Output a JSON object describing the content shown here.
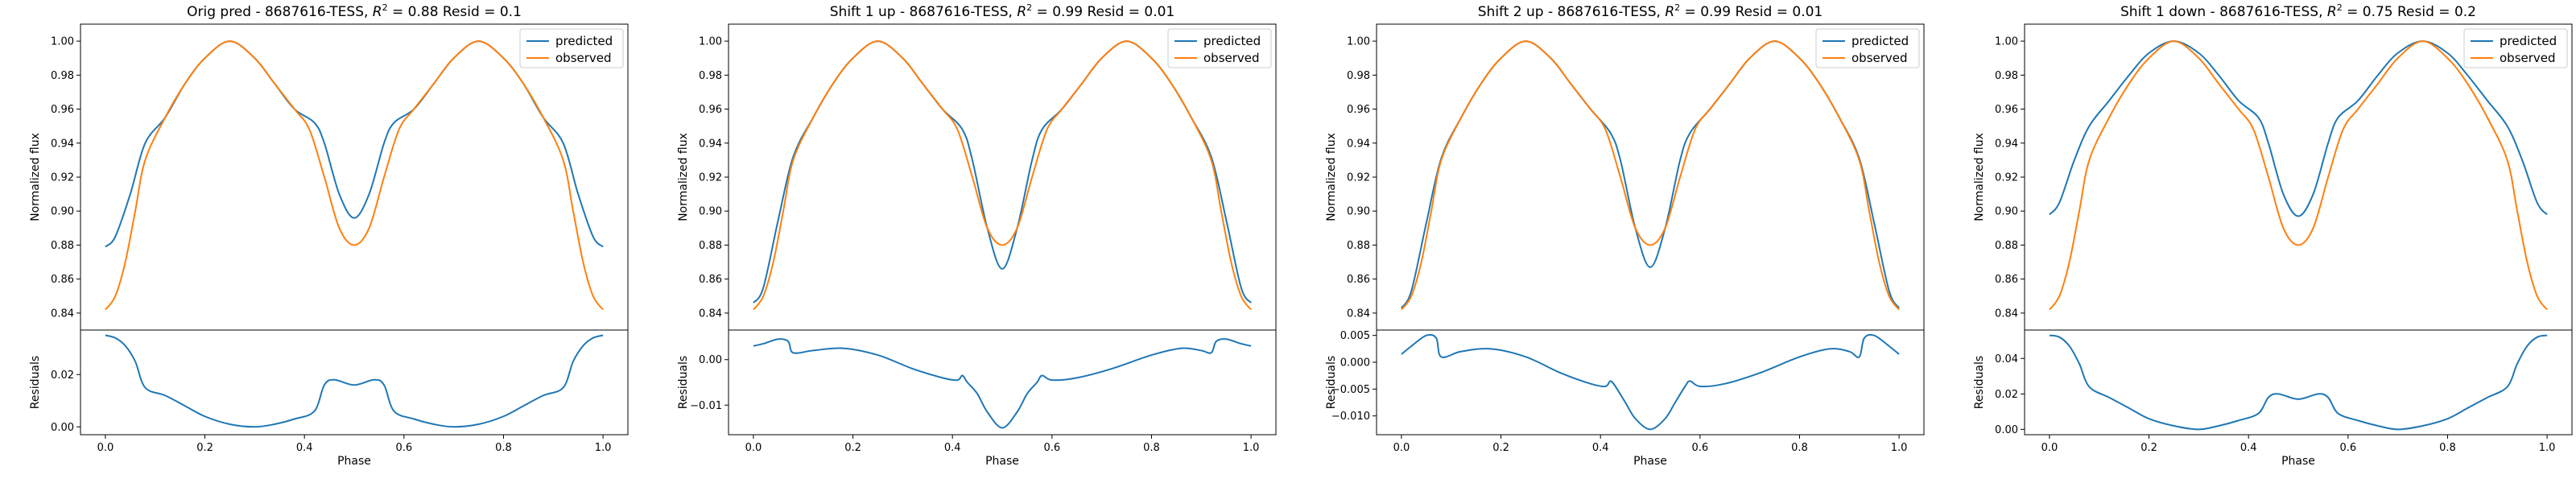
{
  "chart_data": [
    {
      "type": "line",
      "title": "Orig pred - 8687616-TESS, R² = 0.88 Resid = 0.1",
      "title_parts": {
        "prefix": "Orig pred - 8687616-TESS, ",
        "r2_symbol": "R",
        "r2_exp": "2",
        "suffix": " = 0.88 Resid = 0.1"
      },
      "xlabel": "Phase",
      "ylabel_top": "Normalized flux",
      "ylabel_bottom": "Residuals",
      "xlim": [
        -0.05,
        1.05
      ],
      "ylim_top": [
        0.83,
        1.01
      ],
      "ylim_bottom": [
        -0.003,
        0.037
      ],
      "xticks": [
        "0.0",
        "0.2",
        "0.4",
        "0.6",
        "0.8",
        "1.0"
      ],
      "yticks_top": [
        "0.84",
        "0.86",
        "0.88",
        "0.90",
        "0.92",
        "0.94",
        "0.96",
        "0.98",
        "1.00"
      ],
      "yticks_bottom": [
        "0.00",
        "0.02"
      ],
      "legend": [
        "predicted",
        "observed"
      ],
      "series": [
        {
          "name": "predicted",
          "x": [
            0.0,
            0.02,
            0.05,
            0.08,
            0.12,
            0.16,
            0.2,
            0.25,
            0.3,
            0.34,
            0.38,
            0.42,
            0.44,
            0.47,
            0.5,
            0.53,
            0.56,
            0.58,
            0.62,
            0.66,
            0.7,
            0.75,
            0.8,
            0.84,
            0.88,
            0.92,
            0.95,
            0.98,
            1.0
          ],
          "y": [
            0.879,
            0.885,
            0.91,
            0.94,
            0.955,
            0.975,
            0.99,
            1.0,
            0.99,
            0.975,
            0.96,
            0.952,
            0.94,
            0.91,
            0.896,
            0.91,
            0.94,
            0.952,
            0.96,
            0.975,
            0.99,
            1.0,
            0.99,
            0.975,
            0.955,
            0.94,
            0.91,
            0.885,
            0.879
          ]
        },
        {
          "name": "observed",
          "x": [
            0.0,
            0.02,
            0.04,
            0.06,
            0.08,
            0.12,
            0.16,
            0.2,
            0.25,
            0.3,
            0.34,
            0.38,
            0.41,
            0.44,
            0.47,
            0.5,
            0.53,
            0.56,
            0.59,
            0.62,
            0.66,
            0.7,
            0.75,
            0.8,
            0.84,
            0.88,
            0.92,
            0.94,
            0.96,
            0.98,
            1.0
          ],
          "y": [
            0.842,
            0.85,
            0.87,
            0.9,
            0.93,
            0.955,
            0.975,
            0.99,
            1.0,
            0.99,
            0.975,
            0.96,
            0.948,
            0.92,
            0.89,
            0.88,
            0.89,
            0.92,
            0.948,
            0.96,
            0.975,
            0.99,
            1.0,
            0.99,
            0.975,
            0.955,
            0.93,
            0.9,
            0.87,
            0.85,
            0.842
          ]
        },
        {
          "name": "residual",
          "x": [
            0.0,
            0.02,
            0.04,
            0.06,
            0.08,
            0.12,
            0.16,
            0.2,
            0.25,
            0.3,
            0.34,
            0.38,
            0.42,
            0.44,
            0.46,
            0.5,
            0.54,
            0.56,
            0.58,
            0.62,
            0.66,
            0.7,
            0.75,
            0.8,
            0.84,
            0.88,
            0.92,
            0.94,
            0.96,
            0.98,
            1.0
          ],
          "y": [
            0.035,
            0.034,
            0.031,
            0.025,
            0.015,
            0.012,
            0.008,
            0.004,
            0.001,
            0.0,
            0.001,
            0.003,
            0.006,
            0.016,
            0.018,
            0.016,
            0.018,
            0.016,
            0.006,
            0.003,
            0.001,
            0.0,
            0.001,
            0.004,
            0.008,
            0.012,
            0.015,
            0.025,
            0.031,
            0.034,
            0.035
          ]
        }
      ]
    },
    {
      "type": "line",
      "title": "Shift 1 up - 8687616-TESS, R² = 0.99 Resid = 0.01",
      "title_parts": {
        "prefix": "Shift 1 up - 8687616-TESS, ",
        "r2_symbol": "R",
        "r2_exp": "2",
        "suffix": " = 0.99 Resid = 0.01"
      },
      "xlabel": "Phase",
      "ylabel_top": "Normalized flux",
      "ylabel_bottom": "Residuals",
      "xlim": [
        -0.05,
        1.05
      ],
      "ylim_top": [
        0.83,
        1.01
      ],
      "ylim_bottom": [
        -0.0165,
        0.0065
      ],
      "xticks": [
        "0.0",
        "0.2",
        "0.4",
        "0.6",
        "0.8",
        "1.0"
      ],
      "yticks_top": [
        "0.84",
        "0.86",
        "0.88",
        "0.90",
        "0.92",
        "0.94",
        "0.96",
        "0.98",
        "1.00"
      ],
      "yticks_bottom": [
        "−0.01",
        "0.00"
      ],
      "legend": [
        "predicted",
        "observed"
      ],
      "series": [
        {
          "name": "predicted",
          "x": [
            0.0,
            0.02,
            0.05,
            0.08,
            0.12,
            0.16,
            0.2,
            0.25,
            0.3,
            0.34,
            0.38,
            0.42,
            0.44,
            0.47,
            0.5,
            0.53,
            0.56,
            0.58,
            0.62,
            0.66,
            0.7,
            0.75,
            0.8,
            0.84,
            0.88,
            0.92,
            0.95,
            0.98,
            1.0
          ],
          "y": [
            0.846,
            0.855,
            0.895,
            0.932,
            0.955,
            0.975,
            0.99,
            1.0,
            0.99,
            0.975,
            0.96,
            0.948,
            0.93,
            0.89,
            0.866,
            0.89,
            0.93,
            0.948,
            0.96,
            0.975,
            0.99,
            1.0,
            0.99,
            0.975,
            0.955,
            0.932,
            0.895,
            0.855,
            0.846
          ]
        },
        {
          "name": "observed",
          "x": [
            0.0,
            0.02,
            0.04,
            0.06,
            0.08,
            0.12,
            0.16,
            0.2,
            0.25,
            0.3,
            0.34,
            0.38,
            0.41,
            0.44,
            0.47,
            0.5,
            0.53,
            0.56,
            0.59,
            0.62,
            0.66,
            0.7,
            0.75,
            0.8,
            0.84,
            0.88,
            0.92,
            0.94,
            0.96,
            0.98,
            1.0
          ],
          "y": [
            0.842,
            0.85,
            0.87,
            0.9,
            0.93,
            0.955,
            0.975,
            0.99,
            1.0,
            0.99,
            0.975,
            0.96,
            0.948,
            0.92,
            0.89,
            0.88,
            0.89,
            0.92,
            0.948,
            0.96,
            0.975,
            0.99,
            1.0,
            0.99,
            0.975,
            0.955,
            0.93,
            0.9,
            0.87,
            0.85,
            0.842
          ]
        },
        {
          "name": "residual",
          "x": [
            0.0,
            0.02,
            0.05,
            0.07,
            0.08,
            0.12,
            0.18,
            0.25,
            0.32,
            0.38,
            0.41,
            0.42,
            0.43,
            0.45,
            0.47,
            0.5,
            0.53,
            0.55,
            0.57,
            0.58,
            0.6,
            0.65,
            0.72,
            0.8,
            0.86,
            0.9,
            0.92,
            0.93,
            0.95,
            0.98,
            1.0
          ],
          "y": [
            0.003,
            0.0035,
            0.0045,
            0.004,
            0.0015,
            0.002,
            0.0025,
            0.001,
            -0.002,
            -0.004,
            -0.0045,
            -0.0035,
            -0.005,
            -0.0075,
            -0.0115,
            -0.015,
            -0.0115,
            -0.0075,
            -0.005,
            -0.0035,
            -0.0045,
            -0.004,
            -0.002,
            0.001,
            0.0025,
            0.002,
            0.0015,
            0.004,
            0.0045,
            0.0035,
            0.003
          ]
        }
      ]
    },
    {
      "type": "line",
      "title": "Shift 2 up - 8687616-TESS, R² = 0.99 Resid = 0.01",
      "title_parts": {
        "prefix": "Shift 2 up - 8687616-TESS, ",
        "r2_symbol": "R",
        "r2_exp": "2",
        "suffix": " = 0.99 Resid = 0.01"
      },
      "xlabel": "Phase",
      "ylabel_top": "Normalized flux",
      "ylabel_bottom": "Residuals",
      "xlim": [
        -0.05,
        1.05
      ],
      "ylim_top": [
        0.83,
        1.01
      ],
      "ylim_bottom": [
        -0.0135,
        0.006
      ],
      "xticks": [
        "0.0",
        "0.2",
        "0.4",
        "0.6",
        "0.8",
        "1.0"
      ],
      "yticks_top": [
        "0.84",
        "0.86",
        "0.88",
        "0.90",
        "0.92",
        "0.94",
        "0.96",
        "0.98",
        "1.00"
      ],
      "yticks_bottom": [
        "−0.010",
        "−0.005",
        "0.000",
        "0.005"
      ],
      "legend": [
        "predicted",
        "observed"
      ],
      "series": [
        {
          "name": "predicted",
          "x": [
            0.0,
            0.02,
            0.05,
            0.08,
            0.12,
            0.16,
            0.2,
            0.25,
            0.3,
            0.34,
            0.38,
            0.42,
            0.44,
            0.47,
            0.5,
            0.53,
            0.56,
            0.58,
            0.62,
            0.66,
            0.7,
            0.75,
            0.8,
            0.84,
            0.88,
            0.92,
            0.95,
            0.98,
            1.0
          ],
          "y": [
            0.843,
            0.853,
            0.893,
            0.931,
            0.955,
            0.975,
            0.99,
            1.0,
            0.99,
            0.975,
            0.96,
            0.946,
            0.93,
            0.89,
            0.867,
            0.89,
            0.93,
            0.946,
            0.96,
            0.975,
            0.99,
            1.0,
            0.99,
            0.975,
            0.955,
            0.931,
            0.893,
            0.853,
            0.843
          ]
        },
        {
          "name": "observed",
          "x": [
            0.0,
            0.02,
            0.04,
            0.06,
            0.08,
            0.12,
            0.16,
            0.2,
            0.25,
            0.3,
            0.34,
            0.38,
            0.41,
            0.44,
            0.47,
            0.5,
            0.53,
            0.56,
            0.59,
            0.62,
            0.66,
            0.7,
            0.75,
            0.8,
            0.84,
            0.88,
            0.92,
            0.94,
            0.96,
            0.98,
            1.0
          ],
          "y": [
            0.842,
            0.85,
            0.87,
            0.9,
            0.93,
            0.955,
            0.975,
            0.99,
            1.0,
            0.99,
            0.975,
            0.96,
            0.948,
            0.92,
            0.89,
            0.88,
            0.89,
            0.92,
            0.948,
            0.96,
            0.975,
            0.99,
            1.0,
            0.99,
            0.975,
            0.955,
            0.93,
            0.9,
            0.87,
            0.85,
            0.842
          ]
        },
        {
          "name": "residual",
          "x": [
            0.0,
            0.02,
            0.05,
            0.07,
            0.08,
            0.12,
            0.18,
            0.25,
            0.32,
            0.38,
            0.41,
            0.42,
            0.43,
            0.45,
            0.47,
            0.5,
            0.53,
            0.55,
            0.57,
            0.58,
            0.6,
            0.65,
            0.72,
            0.8,
            0.86,
            0.9,
            0.92,
            0.93,
            0.95,
            0.98,
            1.0
          ],
          "y": [
            0.0015,
            0.003,
            0.005,
            0.0045,
            0.001,
            0.002,
            0.0025,
            0.001,
            -0.002,
            -0.004,
            -0.0045,
            -0.0035,
            -0.0045,
            -0.0075,
            -0.0105,
            -0.0125,
            -0.0105,
            -0.0075,
            -0.0045,
            -0.0035,
            -0.0045,
            -0.004,
            -0.002,
            0.001,
            0.0025,
            0.002,
            0.001,
            0.0045,
            0.005,
            0.003,
            0.0015
          ]
        }
      ]
    },
    {
      "type": "line",
      "title": "Shift 1 down - 8687616-TESS, R² = 0.75 Resid = 0.2",
      "title_parts": {
        "prefix": "Shift 1 down - 8687616-TESS, ",
        "r2_symbol": "R",
        "r2_exp": "2",
        "suffix": " = 0.75 Resid = 0.2"
      },
      "xlabel": "Phase",
      "ylabel_top": "Normalized flux",
      "ylabel_bottom": "Residuals",
      "xlim": [
        -0.05,
        1.05
      ],
      "ylim_top": [
        0.83,
        1.01
      ],
      "ylim_bottom": [
        -0.003,
        0.056
      ],
      "xticks": [
        "0.0",
        "0.2",
        "0.4",
        "0.6",
        "0.8",
        "1.0"
      ],
      "yticks_top": [
        "0.84",
        "0.86",
        "0.88",
        "0.90",
        "0.92",
        "0.94",
        "0.96",
        "0.98",
        "1.00"
      ],
      "yticks_bottom": [
        "0.00",
        "0.02",
        "0.04"
      ],
      "legend": [
        "predicted",
        "observed"
      ],
      "series": [
        {
          "name": "predicted",
          "x": [
            0.0,
            0.02,
            0.05,
            0.08,
            0.12,
            0.16,
            0.2,
            0.25,
            0.3,
            0.34,
            0.38,
            0.42,
            0.44,
            0.47,
            0.5,
            0.53,
            0.56,
            0.58,
            0.62,
            0.66,
            0.7,
            0.75,
            0.8,
            0.84,
            0.88,
            0.92,
            0.95,
            0.98,
            1.0
          ],
          "y": [
            0.898,
            0.905,
            0.93,
            0.95,
            0.965,
            0.98,
            0.993,
            1.0,
            0.993,
            0.98,
            0.965,
            0.955,
            0.94,
            0.91,
            0.897,
            0.91,
            0.94,
            0.955,
            0.965,
            0.98,
            0.993,
            1.0,
            0.993,
            0.98,
            0.965,
            0.95,
            0.93,
            0.905,
            0.898
          ]
        },
        {
          "name": "observed",
          "x": [
            0.0,
            0.02,
            0.04,
            0.06,
            0.08,
            0.12,
            0.16,
            0.2,
            0.25,
            0.3,
            0.34,
            0.38,
            0.41,
            0.44,
            0.47,
            0.5,
            0.53,
            0.56,
            0.59,
            0.62,
            0.66,
            0.7,
            0.75,
            0.8,
            0.84,
            0.88,
            0.92,
            0.94,
            0.96,
            0.98,
            1.0
          ],
          "y": [
            0.842,
            0.85,
            0.87,
            0.9,
            0.93,
            0.955,
            0.975,
            0.99,
            1.0,
            0.99,
            0.975,
            0.96,
            0.948,
            0.92,
            0.89,
            0.88,
            0.89,
            0.92,
            0.948,
            0.96,
            0.975,
            0.99,
            1.0,
            0.99,
            0.975,
            0.955,
            0.93,
            0.9,
            0.87,
            0.85,
            0.842
          ]
        },
        {
          "name": "residual",
          "x": [
            0.0,
            0.02,
            0.04,
            0.06,
            0.08,
            0.12,
            0.16,
            0.2,
            0.25,
            0.3,
            0.34,
            0.38,
            0.42,
            0.44,
            0.46,
            0.5,
            0.54,
            0.56,
            0.58,
            0.62,
            0.66,
            0.7,
            0.75,
            0.8,
            0.84,
            0.88,
            0.92,
            0.94,
            0.96,
            0.98,
            1.0
          ],
          "y": [
            0.053,
            0.052,
            0.047,
            0.037,
            0.024,
            0.018,
            0.012,
            0.006,
            0.002,
            0.0,
            0.002,
            0.005,
            0.009,
            0.018,
            0.02,
            0.017,
            0.02,
            0.018,
            0.009,
            0.005,
            0.002,
            0.0,
            0.002,
            0.006,
            0.012,
            0.018,
            0.024,
            0.037,
            0.047,
            0.052,
            0.053
          ]
        }
      ]
    }
  ],
  "colors": {
    "predicted": "#1f77b4",
    "observed": "#ff7f0e",
    "residual": "#1f77b4"
  }
}
